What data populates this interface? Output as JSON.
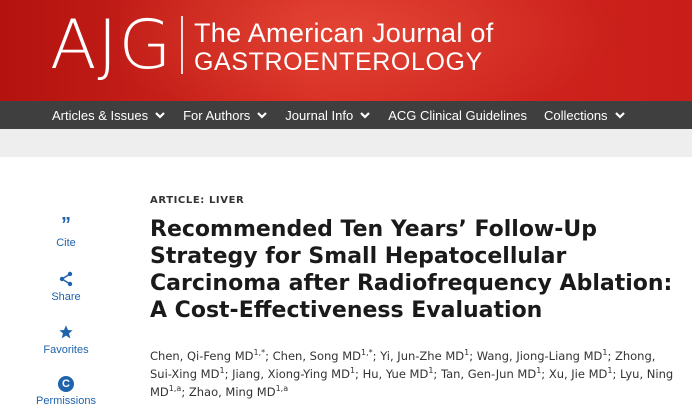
{
  "brand": {
    "logo_letters": "AJG",
    "title_line1": "The American Journal of",
    "title_line2": "GASTROENTEROLOGY"
  },
  "nav": [
    {
      "label": "Articles & Issues",
      "dropdown": true
    },
    {
      "label": "For Authors",
      "dropdown": true
    },
    {
      "label": "Journal Info",
      "dropdown": true
    },
    {
      "label": "ACG Clinical Guidelines",
      "dropdown": false
    },
    {
      "label": "Collections",
      "dropdown": true
    }
  ],
  "tools": {
    "cite": "Cite",
    "share": "Share",
    "favorites": "Favorites",
    "permissions": "Permissions",
    "cite_glyph": "”",
    "permissions_glyph": "C"
  },
  "article": {
    "category": "ARTICLE: LIVER",
    "title": "Recommended Ten Years’ Follow-Up Strategy for Small Hepatocellular Carcinoma after Radiofrequency Ablation: A Cost-Effectiveness Evaluation",
    "authors": [
      {
        "name": "Chen, Qi-Feng MD",
        "sup": "1,*"
      },
      {
        "name": "Chen, Song MD",
        "sup": "1,*"
      },
      {
        "name": "Yi, Jun-Zhe MD",
        "sup": "1"
      },
      {
        "name": "Wang, Jiong-Liang MD",
        "sup": "1"
      },
      {
        "name": "Zhong, Sui-Xing MD",
        "sup": "1"
      },
      {
        "name": "Jiang, Xiong-Ying MD",
        "sup": "1"
      },
      {
        "name": "Hu, Yue MD",
        "sup": "1"
      },
      {
        "name": "Tan, Gen-Jun MD",
        "sup": "1"
      },
      {
        "name": "Xu, Jie MD",
        "sup": "1"
      },
      {
        "name": "Lyu, Ning MD",
        "sup": "1,a"
      },
      {
        "name": "Zhao, Ming MD",
        "sup": "1,a"
      }
    ]
  },
  "colors": {
    "banner_red": "#c81d19",
    "nav_bg": "#3f3f3f",
    "link_blue": "#1f63ad"
  }
}
